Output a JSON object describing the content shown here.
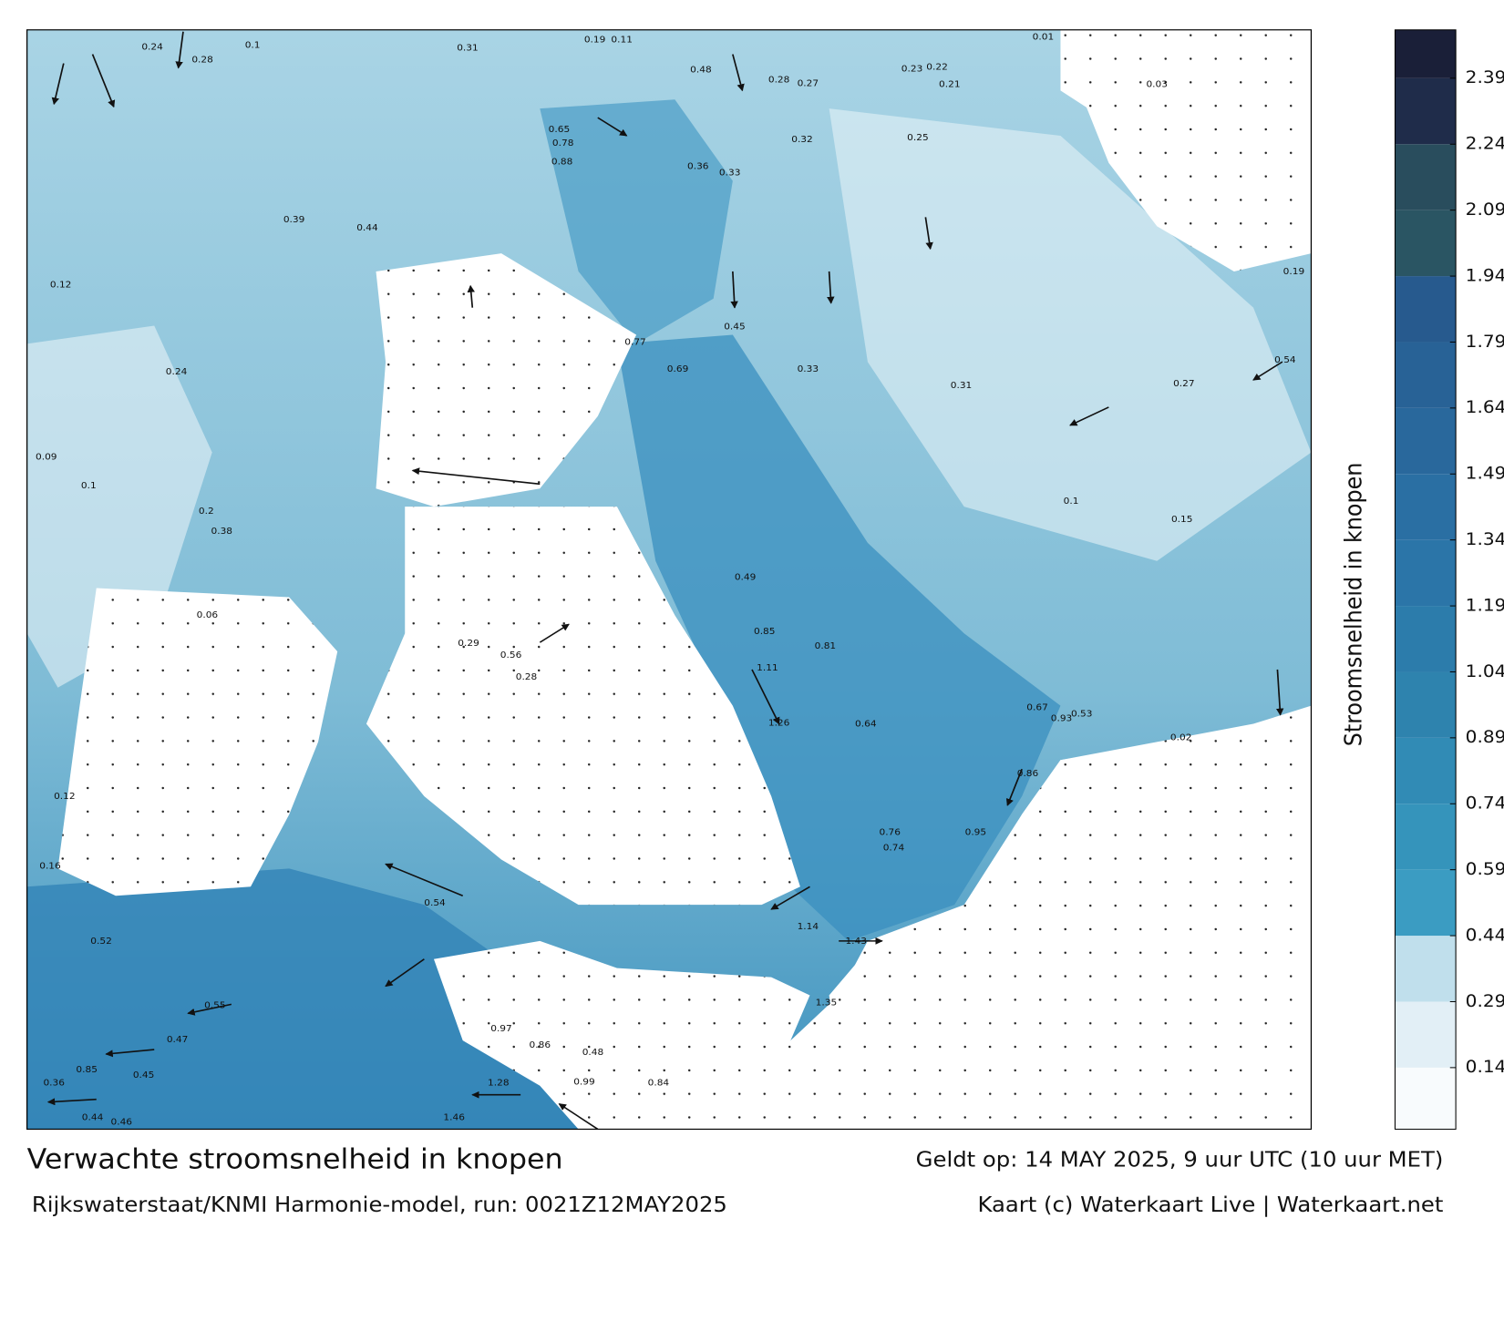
{
  "title": "Verwachte stroomsnelheid in knopen",
  "subtitle": "Rijkswaterstaat/KNMI Harmonie-model, run: 0021Z12MAY2025",
  "valid_time": "Geldt op: 14 MAY 2025, 9 uur UTC (10 uur MET)",
  "credit": "Kaart (c) Waterkaart Live | Waterkaart.net",
  "colorbar": {
    "label": "Stroomsnelheid in knopen",
    "lim": [
      0,
      2.5
    ],
    "ticks": [
      0.14,
      0.29,
      0.44,
      0.59,
      0.74,
      0.89,
      1.04,
      1.19,
      1.34,
      1.49,
      1.64,
      1.79,
      1.94,
      2.09,
      2.24,
      2.39
    ],
    "colors": [
      "#f8fbfd",
      "#e2eff6",
      "#c0dfec",
      "#3b9cc2",
      "#3594bb",
      "#318bb5",
      "#2e83ae",
      "#2c7cab",
      "#2b75a8",
      "#2a6fa3",
      "#29689c",
      "#286296",
      "#275a8e",
      "#2a5563",
      "#294d5d",
      "#1f2c4a",
      "#1a1f38"
    ]
  },
  "map_labels": [
    "0.24",
    "0.28",
    "0.1",
    "0.31",
    "0.19",
    "0.11",
    "0.48",
    "0.28",
    "0.27",
    "0.23",
    "0.22",
    "0.21",
    "0.65",
    "0.78",
    "0.88",
    "0.36",
    "0.33",
    "0.32",
    "0.25",
    "0.39",
    "0.44",
    "0.12",
    "0.24",
    "0.77",
    "0.69",
    "0.45",
    "0.33",
    "0.31",
    "0.27",
    "0.54",
    "0.1",
    "0.15",
    "0.49",
    "0.85",
    "0.81",
    "1.11",
    "1.26",
    "0.64",
    "0.67",
    "0.93",
    "0.86",
    "0.95",
    "0.76",
    "0.74",
    "1.14",
    "1.43",
    "1.35",
    "0.54",
    "0.52",
    "0.55",
    "0.47",
    "0.85",
    "0.45",
    "0.36",
    "0.44",
    "0.46",
    "1.28",
    "1.46",
    "0.99",
    "0.84",
    "0.48",
    "0.86",
    "0.97",
    "0.12",
    "0.16",
    "0.1",
    "0.09",
    "0.2",
    "0.38",
    "0.06",
    "0.29",
    "0.56",
    "0.28",
    "0.53",
    "0.02",
    "0.19",
    "0.01",
    "0.03"
  ]
}
